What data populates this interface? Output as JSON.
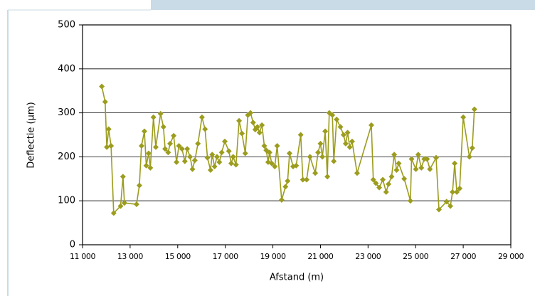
{
  "chart_data": {
    "type": "line",
    "color": "#9c9c1e",
    "x_label": "Afstand (m)",
    "y_label": "Deflectie (µm)",
    "x": [
      11810,
      11950,
      12020,
      12100,
      12200,
      12310,
      12600,
      12700,
      12760,
      13270,
      13390,
      13480,
      13600,
      13680,
      13780,
      13850,
      13980,
      14080,
      14280,
      14400,
      14470,
      14600,
      14680,
      14830,
      14950,
      15050,
      15180,
      15300,
      15400,
      15520,
      15620,
      15720,
      15850,
      16020,
      16150,
      16250,
      16380,
      16450,
      16550,
      16650,
      16750,
      16850,
      16980,
      17150,
      17250,
      17330,
      17450,
      17580,
      17700,
      17840,
      17950,
      18060,
      18170,
      18260,
      18350,
      18440,
      18540,
      18640,
      18720,
      18800,
      18860,
      18950,
      19080,
      19180,
      19370,
      19530,
      19620,
      19700,
      19850,
      19980,
      20170,
      20260,
      20420,
      20560,
      20780,
      20900,
      21000,
      21080,
      21200,
      21290,
      21370,
      21500,
      21560,
      21680,
      21840,
      21970,
      22060,
      22140,
      22230,
      22330,
      22540,
      23140,
      23220,
      23330,
      23470,
      23620,
      23760,
      23860,
      23990,
      24100,
      24200,
      24290,
      24520,
      24780,
      24830,
      25010,
      25110,
      25240,
      25360,
      25480,
      25600,
      25860,
      25980,
      26300,
      26460,
      26550,
      26640,
      26730,
      26850,
      27000,
      27260,
      27380,
      27470
    ],
    "values": [
      360,
      325,
      222,
      263,
      225,
      72,
      88,
      155,
      95,
      92,
      135,
      225,
      258,
      180,
      208,
      175,
      290,
      222,
      298,
      268,
      218,
      210,
      230,
      248,
      188,
      225,
      218,
      190,
      218,
      200,
      172,
      192,
      230,
      290,
      263,
      198,
      170,
      205,
      178,
      200,
      188,
      210,
      235,
      213,
      185,
      200,
      182,
      282,
      253,
      208,
      295,
      300,
      278,
      262,
      268,
      255,
      272,
      225,
      215,
      188,
      210,
      185,
      178,
      225,
      102,
      132,
      145,
      208,
      178,
      180,
      250,
      148,
      148,
      200,
      163,
      210,
      230,
      200,
      258,
      155,
      300,
      295,
      190,
      285,
      268,
      250,
      230,
      255,
      222,
      235,
      163,
      272,
      148,
      140,
      130,
      148,
      120,
      138,
      155,
      205,
      170,
      185,
      150,
      100,
      195,
      172,
      205,
      175,
      195,
      195,
      172,
      198,
      80,
      98,
      88,
      120,
      185,
      120,
      128,
      290,
      200,
      220,
      308
    ],
    "xlim": [
      11000,
      29000
    ],
    "xticks": [
      {
        "value": 11000,
        "label": "11 000"
      },
      {
        "value": 13000,
        "label": "13 000"
      },
      {
        "value": 15000,
        "label": "15 000"
      },
      {
        "value": 17000,
        "label": "17 000"
      },
      {
        "value": 19000,
        "label": "19 000"
      },
      {
        "value": 21000,
        "label": "21 000"
      },
      {
        "value": 23000,
        "label": "23 000"
      },
      {
        "value": 25000,
        "label": "25 000"
      },
      {
        "value": 27000,
        "label": "27 000"
      },
      {
        "value": 29000,
        "label": "29 000"
      }
    ],
    "ylim": [
      0,
      500
    ],
    "yticks": [
      0,
      100,
      200,
      300,
      400,
      500
    ],
    "grid": true
  }
}
